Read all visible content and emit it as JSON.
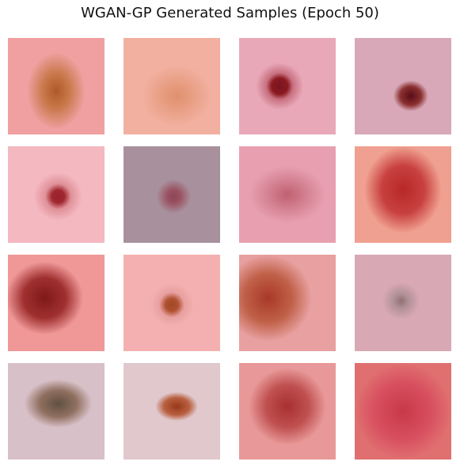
{
  "title": "WGAN-GP Generated Samples (Epoch 50)"
}
